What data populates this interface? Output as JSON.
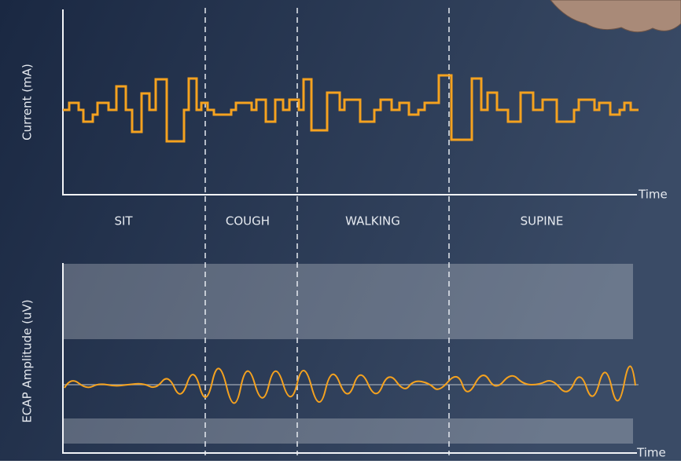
{
  "current_plot": {
    "y_label": "Current (mA)",
    "x_label": "Time"
  },
  "phases": [
    "SIT",
    "COUGH",
    "WALKING",
    "SUPINE"
  ],
  "ecap_plot": {
    "y_label": "ECAP Amplitude (uV)",
    "x_label": "Time"
  }
}
